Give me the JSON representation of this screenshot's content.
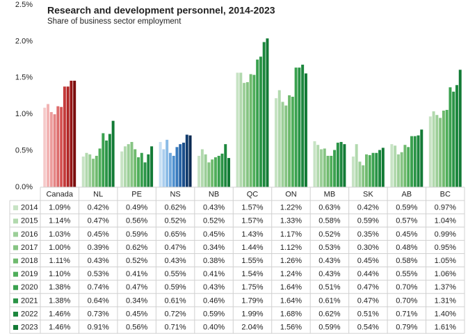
{
  "chart_data": {
    "type": "bar",
    "title": "Research and development personnel, 2014-2023",
    "subtitle": "Share of business sector employment",
    "categories": [
      "Canada",
      "NL",
      "PE",
      "NS",
      "NB",
      "QC",
      "ON",
      "MB",
      "SK",
      "AB",
      "BC"
    ],
    "ylim": [
      0,
      2.5
    ],
    "yticks": [
      {
        "value": 0,
        "label": "0.0%"
      },
      {
        "value": 0.5,
        "label": "0.5%"
      },
      {
        "value": 1,
        "label": "1.0%"
      },
      {
        "value": 1.5,
        "label": "1.5%"
      },
      {
        "value": 2,
        "label": "2.0%"
      },
      {
        "value": 2.5,
        "label": "2.5%"
      }
    ],
    "grid": false,
    "data_table": true,
    "category_palettes": [
      [
        "#f6c9c9",
        "#f2b3b3",
        "#ec9c9c",
        "#e58585",
        "#dd6c6c",
        "#d45454",
        "#c43a3a",
        "#b02626",
        "#961616",
        "#7a0c0c"
      ],
      null,
      null,
      [
        "#c6dff3",
        "#a9cdee",
        "#8bbbe6",
        "#6ea7dc",
        "#4f91cf",
        "#377abd",
        "#2663a5",
        "#1a4e8a",
        "#123c6e",
        "#0b2a52"
      ],
      null,
      null,
      null,
      null,
      null,
      null,
      null
    ],
    "series": [
      {
        "name": "2014",
        "color": "#c7e3c4",
        "values": [
          1.09,
          0.42,
          0.49,
          0.62,
          0.43,
          1.57,
          1.22,
          0.63,
          0.42,
          0.59,
          0.97
        ],
        "value_labels": [
          "1.09%",
          "0.42%",
          "0.49%",
          "0.62%",
          "0.43%",
          "1.57%",
          "1.22%",
          "0.63%",
          "0.42%",
          "0.59%",
          "0.97%"
        ]
      },
      {
        "name": "2015",
        "color": "#b2d9ae",
        "values": [
          1.14,
          0.47,
          0.56,
          0.52,
          0.52,
          1.57,
          1.33,
          0.58,
          0.59,
          0.57,
          1.04
        ],
        "value_labels": [
          "1.14%",
          "0.47%",
          "0.56%",
          "0.52%",
          "0.52%",
          "1.57%",
          "1.33%",
          "0.58%",
          "0.59%",
          "0.57%",
          "1.04%"
        ]
      },
      {
        "name": "2016",
        "color": "#9ccf98",
        "values": [
          1.03,
          0.45,
          0.59,
          0.65,
          0.45,
          1.43,
          1.17,
          0.52,
          0.35,
          0.45,
          0.99
        ],
        "value_labels": [
          "1.03%",
          "0.45%",
          "0.59%",
          "0.65%",
          "0.45%",
          "1.43%",
          "1.17%",
          "0.52%",
          "0.35%",
          "0.45%",
          "0.99%"
        ]
      },
      {
        "name": "2017",
        "color": "#86c483",
        "values": [
          1.0,
          0.39,
          0.62,
          0.47,
          0.34,
          1.44,
          1.12,
          0.53,
          0.3,
          0.48,
          0.95
        ],
        "value_labels": [
          "1.00%",
          "0.39%",
          "0.62%",
          "0.47%",
          "0.34%",
          "1.44%",
          "1.12%",
          "0.53%",
          "0.30%",
          "0.48%",
          "0.95%"
        ]
      },
      {
        "name": "2018",
        "color": "#6fba6e",
        "values": [
          1.11,
          0.43,
          0.52,
          0.43,
          0.38,
          1.55,
          1.26,
          0.43,
          0.45,
          0.58,
          1.05
        ],
        "value_labels": [
          "1.11%",
          "0.43%",
          "0.52%",
          "0.43%",
          "0.38%",
          "1.55%",
          "1.26%",
          "0.43%",
          "0.45%",
          "0.58%",
          "1.05%"
        ]
      },
      {
        "name": "2019",
        "color": "#4fae5a",
        "values": [
          1.1,
          0.53,
          0.41,
          0.55,
          0.41,
          1.54,
          1.24,
          0.43,
          0.44,
          0.55,
          1.06
        ],
        "value_labels": [
          "1.10%",
          "0.53%",
          "0.41%",
          "0.55%",
          "0.41%",
          "1.54%",
          "1.24%",
          "0.43%",
          "0.44%",
          "0.55%",
          "1.06%"
        ]
      },
      {
        "name": "2020",
        "color": "#3aa14f",
        "values": [
          1.38,
          0.74,
          0.47,
          0.59,
          0.43,
          1.75,
          1.64,
          0.51,
          0.47,
          0.7,
          1.37
        ],
        "value_labels": [
          "1.38%",
          "0.74%",
          "0.47%",
          "0.59%",
          "0.43%",
          "1.75%",
          "1.64%",
          "0.51%",
          "0.47%",
          "0.70%",
          "1.37%"
        ]
      },
      {
        "name": "2021",
        "color": "#2a9446",
        "values": [
          1.38,
          0.64,
          0.34,
          0.61,
          0.46,
          1.79,
          1.64,
          0.61,
          0.47,
          0.7,
          1.31
        ],
        "value_labels": [
          "1.38%",
          "0.64%",
          "0.34%",
          "0.61%",
          "0.46%",
          "1.79%",
          "1.64%",
          "0.61%",
          "0.47%",
          "0.70%",
          "1.31%"
        ]
      },
      {
        "name": "2022",
        "color": "#1c873d",
        "values": [
          1.46,
          0.73,
          0.45,
          0.72,
          0.59,
          1.99,
          1.68,
          0.62,
          0.51,
          0.71,
          1.4
        ],
        "value_labels": [
          "1.46%",
          "0.73%",
          "0.45%",
          "0.72%",
          "0.59%",
          "1.99%",
          "1.68%",
          "0.62%",
          "0.51%",
          "0.71%",
          "1.40%"
        ]
      },
      {
        "name": "2023",
        "color": "#127a35",
        "values": [
          1.46,
          0.91,
          0.56,
          0.71,
          0.4,
          2.04,
          1.56,
          0.59,
          0.54,
          0.79,
          1.61
        ],
        "value_labels": [
          "1.46%",
          "0.91%",
          "0.56%",
          "0.71%",
          "0.40%",
          "2.04%",
          "1.56%",
          "0.59%",
          "0.54%",
          "0.79%",
          "1.61%"
        ]
      }
    ]
  }
}
